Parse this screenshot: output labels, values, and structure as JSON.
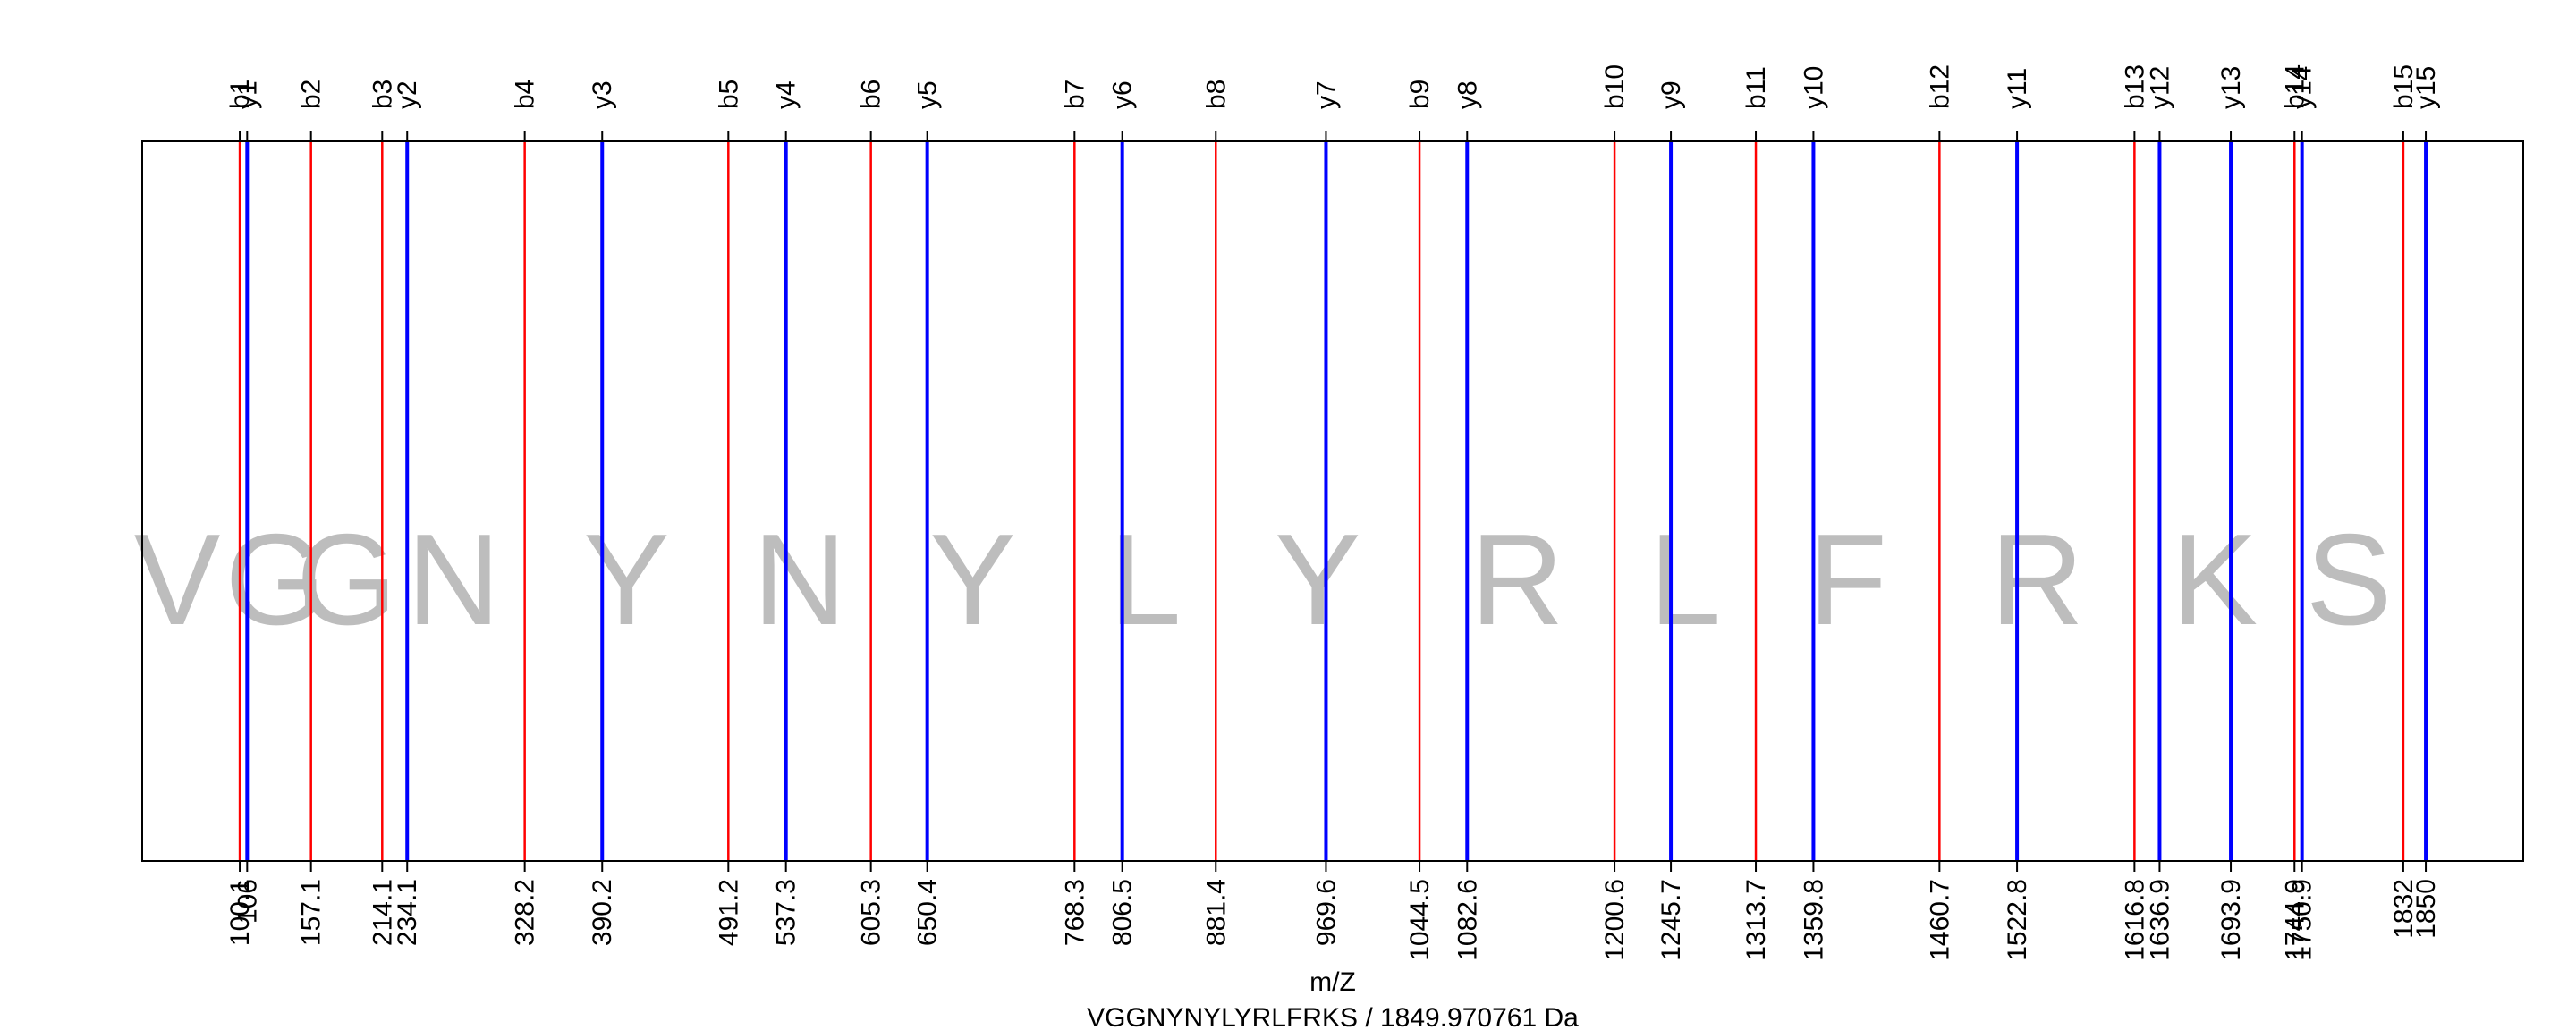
{
  "chart_data": {
    "type": "spectrum",
    "xlabel": "m/Z",
    "caption": "VGGNYNYLYRLFRKS / 1849.970761 Da",
    "xlim": [
      22.0,
      1928.0
    ],
    "colors": {
      "b": "#ff0000",
      "y": "#0000ff",
      "residue": "#bdbdbd",
      "frame": "#000000"
    },
    "series": [
      {
        "name": "b",
        "ions": [
          {
            "label": "b1",
            "mz": 100.1,
            "tick": "100.1"
          },
          {
            "label": "b2",
            "mz": 157.1,
            "tick": "157.1"
          },
          {
            "label": "b3",
            "mz": 214.1,
            "tick": "214.1"
          },
          {
            "label": "b4",
            "mz": 328.2,
            "tick": "328.2"
          },
          {
            "label": "b5",
            "mz": 491.2,
            "tick": "491.2"
          },
          {
            "label": "b6",
            "mz": 605.3,
            "tick": "605.3"
          },
          {
            "label": "b7",
            "mz": 768.3,
            "tick": "768.3"
          },
          {
            "label": "b8",
            "mz": 881.4,
            "tick": "881.4"
          },
          {
            "label": "b9",
            "mz": 1044.5,
            "tick": "1044.5"
          },
          {
            "label": "b10",
            "mz": 1200.6,
            "tick": "1200.6"
          },
          {
            "label": "b11",
            "mz": 1313.7,
            "tick": "1313.7"
          },
          {
            "label": "b12",
            "mz": 1460.7,
            "tick": "1460.7"
          },
          {
            "label": "b13",
            "mz": 1616.8,
            "tick": "1616.8"
          },
          {
            "label": "b14",
            "mz": 1744.9,
            "tick": "1744.9"
          },
          {
            "label": "b15",
            "mz": 1832.0,
            "tick": "1832"
          }
        ]
      },
      {
        "name": "y",
        "ions": [
          {
            "label": "y1",
            "mz": 106.0,
            "tick": "106"
          },
          {
            "label": "y2",
            "mz": 234.1,
            "tick": "234.1"
          },
          {
            "label": "y3",
            "mz": 390.2,
            "tick": "390.2"
          },
          {
            "label": "y4",
            "mz": 537.3,
            "tick": "537.3"
          },
          {
            "label": "y5",
            "mz": 650.4,
            "tick": "650.4"
          },
          {
            "label": "y6",
            "mz": 806.5,
            "tick": "806.5"
          },
          {
            "label": "y7",
            "mz": 969.6,
            "tick": "969.6"
          },
          {
            "label": "y8",
            "mz": 1082.6,
            "tick": "1082.6"
          },
          {
            "label": "y9",
            "mz": 1245.7,
            "tick": "1245.7"
          },
          {
            "label": "y10",
            "mz": 1359.8,
            "tick": "1359.8"
          },
          {
            "label": "y11",
            "mz": 1522.8,
            "tick": "1522.8"
          },
          {
            "label": "y12",
            "mz": 1636.9,
            "tick": "1636.9"
          },
          {
            "label": "y13",
            "mz": 1693.9,
            "tick": "1693.9"
          },
          {
            "label": "y14",
            "mz": 1750.9,
            "tick": "1750.9"
          },
          {
            "label": "y15",
            "mz": 1850.0,
            "tick": "1850"
          }
        ]
      }
    ],
    "residues": [
      {
        "letter": "V",
        "mz": 50.0
      },
      {
        "letter": "G",
        "mz": 128.6
      },
      {
        "letter": "G",
        "mz": 185.6
      },
      {
        "letter": "N",
        "mz": 271.2
      },
      {
        "letter": "Y",
        "mz": 409.7
      },
      {
        "letter": "N",
        "mz": 548.3
      },
      {
        "letter": "Y",
        "mz": 686.8
      },
      {
        "letter": "L",
        "mz": 824.9
      },
      {
        "letter": "Y",
        "mz": 963.0
      },
      {
        "letter": "R",
        "mz": 1122.6
      },
      {
        "letter": "L",
        "mz": 1257.2
      },
      {
        "letter": "F",
        "mz": 1387.2
      },
      {
        "letter": "R",
        "mz": 1538.8
      },
      {
        "letter": "K",
        "mz": 1680.9
      },
      {
        "letter": "S",
        "mz": 1788.5
      }
    ]
  }
}
